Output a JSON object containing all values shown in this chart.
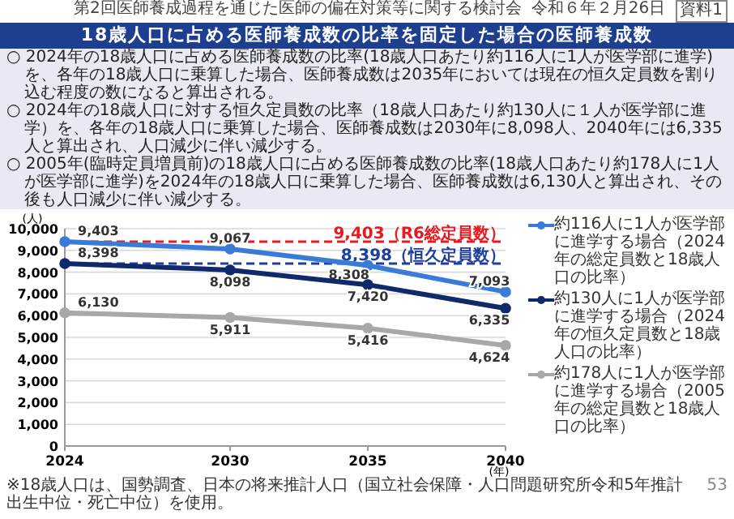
{
  "chart_data": {
    "type": "line",
    "title": "18歳人口に占める医師養成数の比率を固定した場合の医師養成数",
    "ylabel": "(人)",
    "xlabel": "(年)",
    "x": [
      2024,
      2030,
      2035,
      2040
    ],
    "xlim": [
      2024,
      2040
    ],
    "xticks": [
      2024,
      2030,
      2035,
      2040
    ],
    "ylim": [
      0,
      10000
    ],
    "yticks": [
      0,
      {
        "value": 1000,
        "label": "1,000"
      },
      {
        "value": 2000,
        "label": "2,000"
      },
      {
        "value": 3000,
        "label": "3,000"
      },
      {
        "value": 4000,
        "label": "4,000"
      },
      {
        "value": 5000,
        "label": "5,000"
      },
      {
        "value": 6000,
        "label": "6,000"
      },
      {
        "value": 7000,
        "label": "7,000"
      },
      {
        "value": 8000,
        "label": "8,000"
      },
      {
        "value": 9000,
        "label": "9,000"
      },
      {
        "value": 10000,
        "label": "10,000"
      }
    ],
    "grid": "y",
    "legend": "right",
    "marker": "circle",
    "line_style": "solid",
    "series": [
      {
        "name": "約116人に1人が医学部に進学する場合（2024年の総定員数と18歳人口の比率）",
        "color": "#3b7bd8",
        "values": [
          9403,
          9067,
          8308,
          7093
        ],
        "value_labels": [
          "9,403",
          "9,067",
          "8,308",
          "7,093"
        ]
      },
      {
        "name": "約130人に1人が医学部に進学する場合（2024年の恒久定員数と18歳人口の比率）",
        "color": "#10296b",
        "values": [
          8398,
          8098,
          7420,
          6335
        ],
        "value_labels": [
          "8,398",
          "8,098",
          "7,420",
          "6,335"
        ]
      },
      {
        "name": "約178人に1人が医学部に進学する場合（2005年の総定員数と18歳人口の比率）",
        "color": "#a8a8a8",
        "values": [
          6130,
          5911,
          5416,
          4624
        ],
        "value_labels": [
          "6,130",
          "5,911",
          "5,416",
          "4,624"
        ]
      }
    ],
    "ref_lines": [
      {
        "axis": "y",
        "value": 9403,
        "label": "9,403（R6総定員数）",
        "color": "#e8191f",
        "line_style": "dashed"
      },
      {
        "axis": "y",
        "value": 8398,
        "label": "8,398（恒久定員数）",
        "color": "#1f3f9e",
        "line_style": "dashed"
      }
    ],
    "annotations": [
      "○ 2024年の18歳人口に占める医師養成数の比率(18歳人口あたり約116人に1人が医学部に進学)を、各年の18歳人口に乗算した場合、医師養成数は2035年においては現在の恒久定員数を割り込む程度の数になると算出される。",
      "○ 2024年の18歳人口に対する恒久定員数の比率（18歳人口あたり約130人に１人が医学部に進学）を、各年の18歳人口に乗算した場合、医師養成数は2030年に8,098人、2040年には6,335人と算出され、人口減少に伴い減少する。",
      "○ 2005年(臨時定員増員前)の18歳人口に占める医師養成数の比率(18歳人口あたり約178人に1人が医学部に進学)を2024年の18歳人口に乗算した場合、医師養成数は6,130人と算出され、その後も人口減少に伴い減少する。",
      "第2回医師養成過程を通じた医師の偏在対策等に関する検討会",
      "令和６年２月26日",
      "資料1",
      "※18歳人口は、国勢調査、日本の将来推計人口（国立社会保障・人口問題研究所令和5年推計出生中位・死亡中位）を使用。",
      "53"
    ]
  }
}
